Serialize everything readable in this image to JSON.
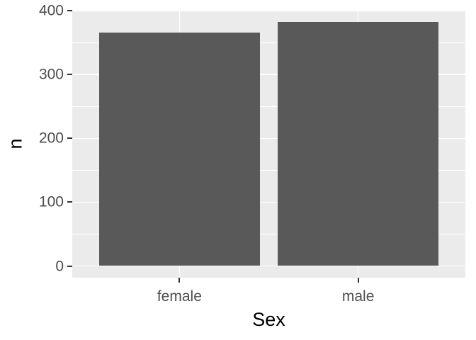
{
  "chart_data": {
    "type": "bar",
    "categories": [
      "female",
      "male"
    ],
    "values": [
      366,
      382
    ],
    "title": "",
    "xlabel": "Sex",
    "ylabel": "n",
    "ylim": [
      0,
      400
    ],
    "yticks": [
      0,
      100,
      200,
      300,
      400
    ],
    "ytick_labels": [
      "0",
      "100",
      "200",
      "300",
      "400"
    ],
    "yminor": [
      50,
      150,
      250,
      350
    ],
    "grid": true,
    "legend_position": "none",
    "colors": {
      "bar_fill": "#595959",
      "panel_background": "#EBEBEB",
      "gridline": "#FFFFFF",
      "tick_mark": "#333333",
      "tick_label": "#4D4D4D",
      "axis_title": "#000000",
      "figure_background": "#FFFFFF"
    }
  }
}
